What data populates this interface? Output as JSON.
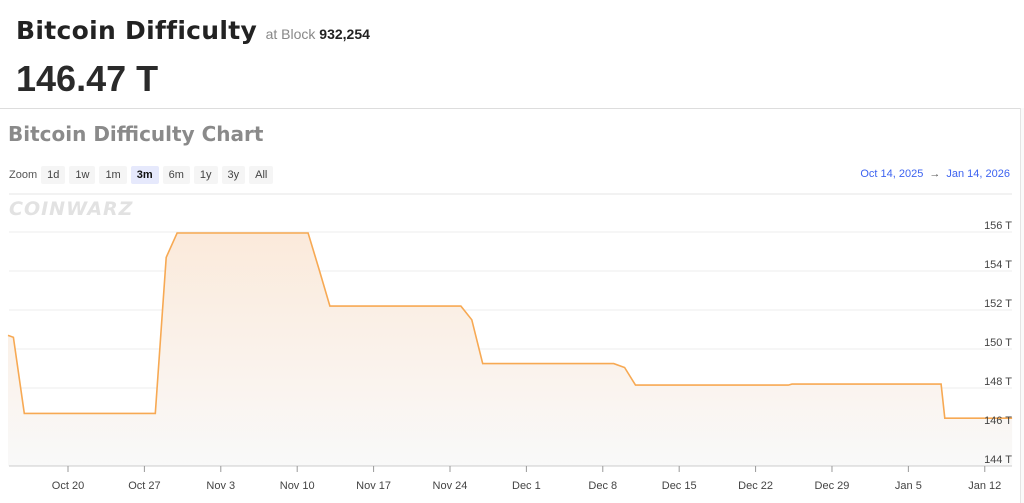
{
  "header": {
    "title": "Bitcoin Difficulty",
    "at_block_label": "at Block",
    "block": "932,254",
    "value": "146.47 T"
  },
  "chart_title": "Bitcoin Difficulty Chart",
  "zoom": {
    "label": "Zoom",
    "buttons": [
      "1d",
      "1w",
      "1m",
      "3m",
      "6m",
      "1y",
      "3y",
      "All"
    ],
    "selected": "3m"
  },
  "range": {
    "from": "Oct 14, 2025",
    "arrow": "→",
    "to": "Jan 14, 2026"
  },
  "watermark": "COINWARZ",
  "colors": {
    "line": "#f7a953",
    "fill_top": "#fbeadb",
    "accent": "#3d63f0"
  },
  "chart_data": {
    "type": "area",
    "title": "Bitcoin Difficulty Chart",
    "xlabel": "",
    "ylabel": "",
    "unit": "T",
    "xlim": [
      "2025-10-14T12:00",
      "2026-01-14T12:00"
    ],
    "ylim": [
      144,
      158
    ],
    "y_ticks": [
      "144 T",
      "146 T",
      "148 T",
      "150 T",
      "152 T",
      "154 T",
      "156 T"
    ],
    "y_tick_values": [
      144,
      146,
      148,
      150,
      152,
      154,
      156
    ],
    "x_ticks": [
      "Oct 20",
      "Oct 27",
      "Nov 3",
      "Nov 10",
      "Nov 17",
      "Nov 24",
      "Dec 1",
      "Dec 8",
      "Dec 15",
      "Dec 22",
      "Dec 29",
      "Jan 5",
      "Jan 12"
    ],
    "x_tick_dates": [
      "2025-10-20",
      "2025-10-27",
      "2025-11-03",
      "2025-11-10",
      "2025-11-17",
      "2025-11-24",
      "2025-12-01",
      "2025-12-08",
      "2025-12-15",
      "2025-12-22",
      "2025-12-29",
      "2026-01-05",
      "2026-01-12"
    ],
    "grid": true,
    "points": [
      [
        "2025-10-14T12:00",
        150.7
      ],
      [
        "2025-10-15T00:00",
        150.6
      ],
      [
        "2025-10-16T00:00",
        146.7
      ],
      [
        "2025-10-28T00:00",
        146.7
      ],
      [
        "2025-10-29T00:00",
        154.7
      ],
      [
        "2025-10-30T00:00",
        155.95
      ],
      [
        "2025-11-11T00:00",
        155.95
      ],
      [
        "2025-11-12T00:00",
        154.1
      ],
      [
        "2025-11-13T00:00",
        152.2
      ],
      [
        "2025-11-25T00:00",
        152.2
      ],
      [
        "2025-11-26T00:00",
        151.5
      ],
      [
        "2025-11-27T00:00",
        149.25
      ],
      [
        "2025-12-09T00:00",
        149.25
      ],
      [
        "2025-12-10T00:00",
        149.05
      ],
      [
        "2025-12-11T00:00",
        148.15
      ],
      [
        "2025-12-25T00:00",
        148.15
      ],
      [
        "2025-12-25T08:00",
        148.2
      ],
      [
        "2026-01-08T00:00",
        148.2
      ],
      [
        "2026-01-08T08:00",
        146.45
      ],
      [
        "2026-01-14T12:00",
        146.45
      ]
    ]
  }
}
